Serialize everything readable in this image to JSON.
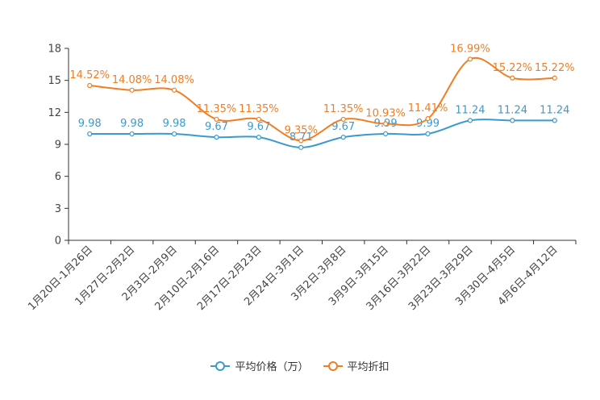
{
  "chart_data": {
    "type": "line",
    "title": "",
    "xlabel": "",
    "ylabel": "",
    "ylim": [
      0,
      18
    ],
    "yticks": [
      0,
      3,
      6,
      9,
      12,
      15,
      18
    ],
    "categories": [
      "1月20日-1月26日",
      "1月27日-2月2日",
      "2月3日-2月9日",
      "2月10日-2月16日",
      "2月17日-2月23日",
      "2月24日-3月1日",
      "3月2日-3月8日",
      "3月9日-3月15日",
      "3月16日-3月22日",
      "3月23日-3月29日",
      "3月30日-4月5日",
      "4月6日-4月12日"
    ],
    "series": [
      {
        "name": "平均价格（万）",
        "color": "#3a9ad0",
        "values": [
          9.98,
          9.98,
          9.98,
          9.67,
          9.67,
          8.71,
          9.67,
          9.99,
          9.99,
          11.24,
          11.24,
          11.24
        ],
        "labels": [
          "9.98",
          "9.98",
          "9.98",
          "9.67",
          "9.67",
          "8.71",
          "9.67",
          "9.99",
          "9.99",
          "11.24",
          "11.24",
          "11.24"
        ]
      },
      {
        "name": "平均折扣",
        "color": "#f27d22",
        "values": [
          14.52,
          14.08,
          14.08,
          11.35,
          11.35,
          9.35,
          11.35,
          10.93,
          11.41,
          16.99,
          15.22,
          15.22
        ],
        "labels": [
          "14.52%",
          "14.08%",
          "14.08%",
          "11.35%",
          "11.35%",
          "9.35%",
          "11.35%",
          "10.93%",
          "11.41%",
          "16.99%",
          "15.22%",
          "15.22%"
        ]
      }
    ],
    "legend_position": "bottom-center"
  }
}
